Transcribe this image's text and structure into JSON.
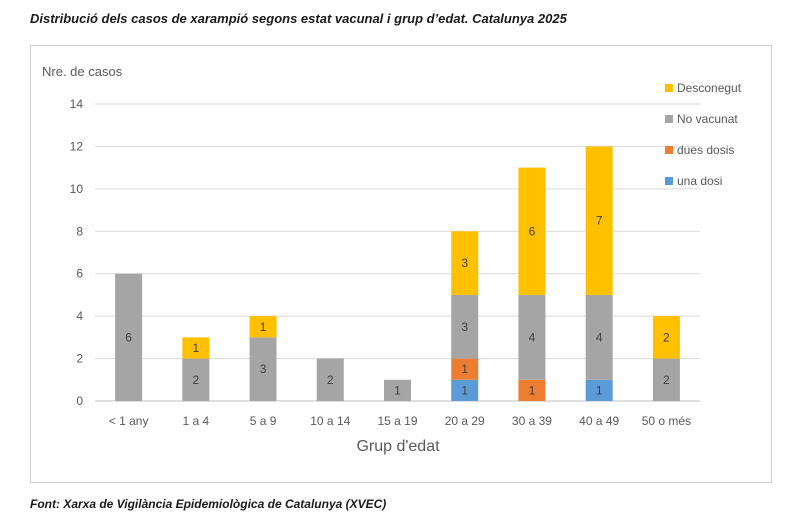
{
  "title": "Distribució dels casos de xarampió segons estat vacunal i grup d’edat. Catalunya 2025",
  "source": "Font: Xarxa de Vigilància Epidemiològica de Catalunya (XVEC)",
  "colors": {
    "una dosi": "#5b9bd5",
    "dues dosis": "#ed7d31",
    "No vacunat": "#a5a5a5",
    "Desconegut": "#ffc000"
  },
  "chart_data": {
    "type": "bar",
    "stacked": true,
    "title": "",
    "xlabel": "Grup d'edat",
    "ylabel": "Nre. de casos",
    "ylim": [
      0,
      14
    ],
    "yticks": [
      0,
      2,
      4,
      6,
      8,
      10,
      12,
      14
    ],
    "grid": true,
    "legend_position": "top-right",
    "categories": [
      "< 1 any",
      "1 a 4",
      "5 a 9",
      "10 a 14",
      "15 a 19",
      "20 a 29",
      "30 a 39",
      "40 a 49",
      "50 o més"
    ],
    "series": [
      {
        "name": "una dosi",
        "values": [
          0,
          0,
          0,
          0,
          0,
          1,
          0,
          1,
          0
        ]
      },
      {
        "name": "dues dosis",
        "values": [
          0,
          0,
          0,
          0,
          0,
          1,
          1,
          0,
          0
        ]
      },
      {
        "name": "No vacunat",
        "values": [
          6,
          2,
          3,
          2,
          1,
          3,
          4,
          4,
          2
        ]
      },
      {
        "name": "Desconegut",
        "values": [
          0,
          1,
          1,
          0,
          0,
          3,
          6,
          7,
          2
        ]
      }
    ],
    "legend_order": [
      "Desconegut",
      "No vacunat",
      "dues dosis",
      "una dosi"
    ]
  }
}
